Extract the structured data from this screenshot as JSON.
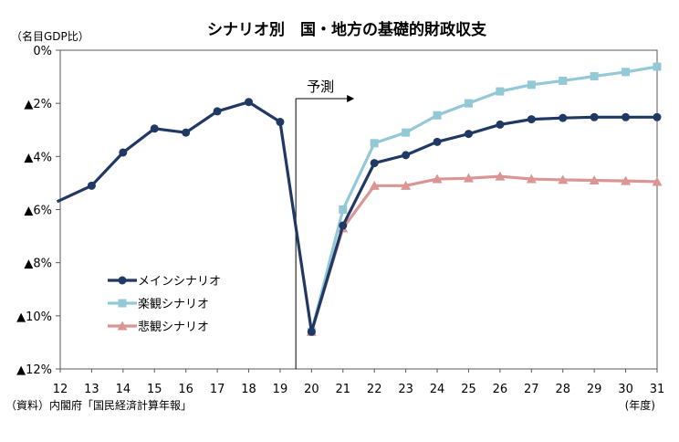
{
  "chart_data": {
    "type": "line",
    "title": "シナリオ別　国・地方の基礎的財政収支",
    "ylabel": "（名目GDP比）",
    "xunit": "(年度)",
    "source": "（資料）内閣府「国民経済計算年報」",
    "forecast_label": "予測",
    "forecast_start": 19.5,
    "categories": [
      "12",
      "13",
      "14",
      "15",
      "16",
      "17",
      "18",
      "19",
      "20",
      "21",
      "22",
      "23",
      "24",
      "25",
      "26",
      "27",
      "28",
      "29",
      "30",
      "31"
    ],
    "x": [
      12,
      13,
      14,
      15,
      16,
      17,
      18,
      19,
      20,
      21,
      22,
      23,
      24,
      25,
      26,
      27,
      28,
      29,
      30,
      31
    ],
    "ylim": [
      -12,
      0
    ],
    "yticks": [
      0,
      -2,
      -4,
      -6,
      -8,
      -10,
      -12
    ],
    "ytick_labels": [
      "0%",
      "▲2%",
      "▲4%",
      "▲6%",
      "▲8%",
      "▲10%",
      "▲12%"
    ],
    "grid": false,
    "legend_position": "lower-left",
    "series": [
      {
        "name": "楽観シナリオ",
        "color": "#93c9d6",
        "marker": "square",
        "x": [
          20,
          21,
          22,
          23,
          24,
          25,
          26,
          27,
          28,
          29,
          30,
          31
        ],
        "values": [
          -10.6,
          -6.0,
          -3.5,
          -3.1,
          -2.45,
          -2.0,
          -1.55,
          -1.3,
          -1.15,
          -0.98,
          -0.82,
          -0.62
        ]
      },
      {
        "name": "悲観シナリオ",
        "color": "#d99694",
        "marker": "triangle",
        "x": [
          20,
          21,
          22,
          23,
          24,
          25,
          26,
          27,
          28,
          29,
          30,
          31
        ],
        "values": [
          -10.6,
          -6.7,
          -5.1,
          -5.1,
          -4.85,
          -4.82,
          -4.75,
          -4.85,
          -4.88,
          -4.9,
          -4.92,
          -4.95
        ]
      },
      {
        "name": "メインシナリオ",
        "color": "#1f3864",
        "marker": "circle",
        "x": [
          11.9,
          13,
          14,
          15,
          16,
          17,
          18,
          19,
          20,
          21,
          22,
          23,
          24,
          25,
          26,
          27,
          28,
          29,
          30,
          31
        ],
        "values": [
          -5.7,
          -5.1,
          -3.85,
          -2.95,
          -3.1,
          -2.3,
          -1.95,
          -2.7,
          -10.6,
          -6.6,
          -4.25,
          -3.95,
          -3.45,
          -3.15,
          -2.8,
          -2.6,
          -2.55,
          -2.52,
          -2.52,
          -2.52
        ]
      }
    ],
    "legend_order": [
      "メインシナリオ",
      "楽観シナリオ",
      "悲観シナリオ"
    ]
  }
}
